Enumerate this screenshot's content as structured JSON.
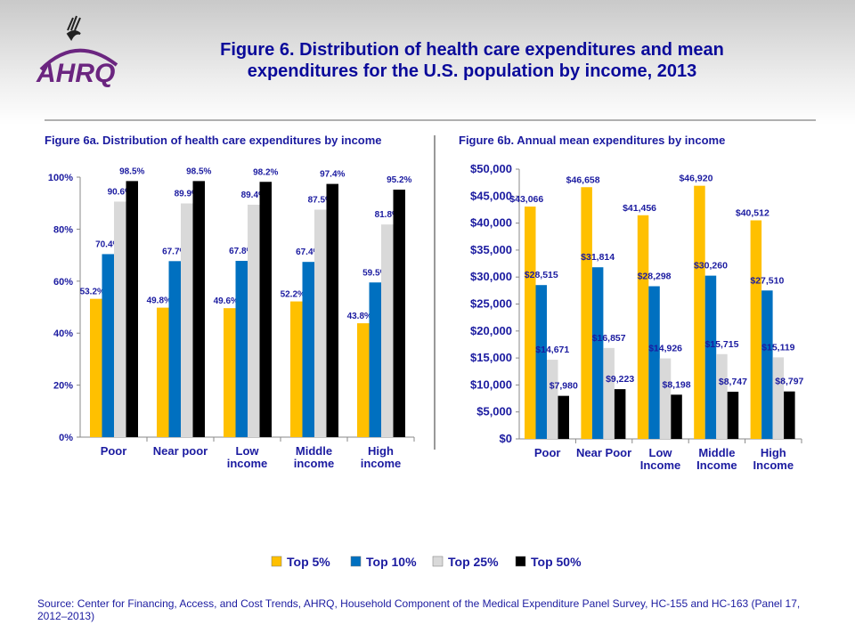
{
  "header": {
    "title": "Figure 6. Distribution of health care expenditures and mean expenditures for the U.S. population by income, 2013",
    "logo_text": "AHRQ"
  },
  "colors": {
    "top5": "#ffc000",
    "top10": "#0070c0",
    "top25": "#d9d9d9",
    "top50": "#000000",
    "text": "#1b1ba0"
  },
  "legend": [
    "Top 5%",
    "Top 10%",
    "Top 25%",
    "Top 50%"
  ],
  "source": "Source: Center for Financing, Access, and Cost Trends, AHRQ, Household Component of the Medical Expenditure Panel Survey,  HC-155 and HC-163 (Panel 17, 2012–2013)",
  "chart_data": [
    {
      "type": "bar",
      "title": "Figure 6a. Distribution  of health care expenditures by income",
      "categories": [
        [
          "Poor"
        ],
        [
          "Near poor"
        ],
        [
          "Low",
          "income"
        ],
        [
          "Middle",
          "income"
        ],
        [
          "High",
          "income"
        ]
      ],
      "ylim": [
        0,
        100
      ],
      "yticks": [
        0,
        20,
        40,
        60,
        80,
        100
      ],
      "ytick_labels": [
        "0%",
        "20%",
        "40%",
        "60%",
        "80%",
        "100%"
      ],
      "series": [
        {
          "name": "Top 5%",
          "values": [
            53.2,
            49.8,
            49.6,
            52.2,
            43.8
          ],
          "labels": [
            "53.2%",
            "49.8%",
            "49.6%",
            "52.2%",
            "43.8%"
          ]
        },
        {
          "name": "Top 10%",
          "values": [
            70.4,
            67.7,
            67.8,
            67.4,
            59.5
          ],
          "labels": [
            "70.4%",
            "67.7%",
            "67.8%",
            "67.4%",
            "59.5%"
          ]
        },
        {
          "name": "Top 25%",
          "values": [
            90.6,
            89.9,
            89.4,
            87.5,
            81.8
          ],
          "labels": [
            "90.6%",
            "89.9%",
            "89.4%",
            "87.5%",
            "81.8%"
          ]
        },
        {
          "name": "Top 50%",
          "values": [
            98.5,
            98.5,
            98.2,
            97.4,
            95.2
          ],
          "labels": [
            "98.5%",
            "98.5%",
            "98.2%",
            "97.4%",
            "95.2%"
          ]
        }
      ]
    },
    {
      "type": "bar",
      "title": "Figure 6b. Annual mean expenditures by income",
      "categories": [
        [
          "Poor"
        ],
        [
          "Near Poor"
        ],
        [
          "Low",
          "Income"
        ],
        [
          "Middle",
          "Income"
        ],
        [
          "High",
          "Income"
        ]
      ],
      "ylim": [
        0,
        50000
      ],
      "yticks": [
        0,
        5000,
        10000,
        15000,
        20000,
        25000,
        30000,
        35000,
        40000,
        45000,
        50000
      ],
      "ytick_labels": [
        "$0",
        "$5,000",
        "$10,000",
        "$15,000",
        "$20,000",
        "$25,000",
        "$30,000",
        "$35,000",
        "$40,000",
        "$45,000",
        "$50,000"
      ],
      "series": [
        {
          "name": "Top 5%",
          "values": [
            43066,
            46658,
            41456,
            46920,
            40512
          ],
          "labels": [
            "$43,066",
            "$46,658",
            "$41,456",
            "$46,920",
            "$40,512"
          ]
        },
        {
          "name": "Top 10%",
          "values": [
            28515,
            31814,
            28298,
            30260,
            27510
          ],
          "labels": [
            "$28,515",
            "$31,814",
            "$28,298",
            "$30,260",
            "$27,510"
          ]
        },
        {
          "name": "Top 25%",
          "values": [
            14671,
            16857,
            14926,
            15715,
            15119
          ],
          "labels": [
            "$14,671",
            "$16,857",
            "$14,926",
            "$15,715",
            "$15,119"
          ]
        },
        {
          "name": "Top 50%",
          "values": [
            7980,
            9223,
            8198,
            8747,
            8797
          ],
          "labels": [
            "$7,980",
            "$9,223",
            "$8,198",
            "$8,747",
            "$8,797"
          ]
        }
      ]
    }
  ]
}
